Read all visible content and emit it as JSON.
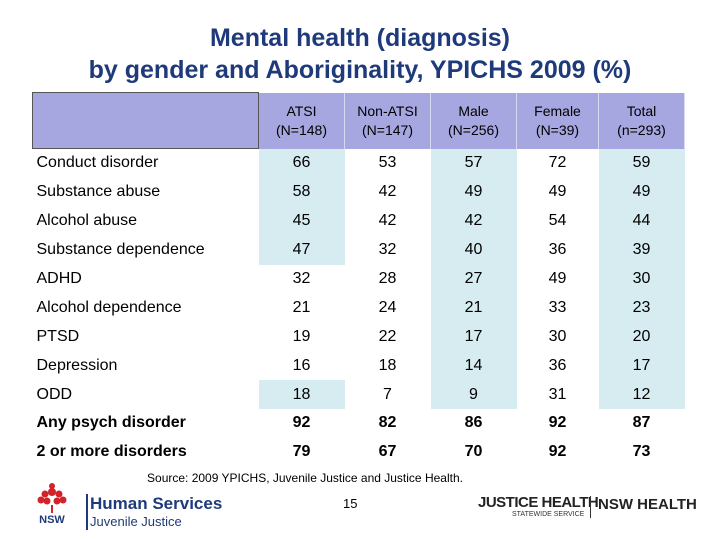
{
  "title": {
    "line1": "Mental health (diagnosis)",
    "line2": "by gender and Aboriginality, YPICHS 2009 (%)"
  },
  "table": {
    "columns": [
      {
        "line1": "ATSI",
        "line2": "(N=148)"
      },
      {
        "line1": "Non-ATSI",
        "line2": "(N=147)"
      },
      {
        "line1": "Male",
        "line2": "(N=256)"
      },
      {
        "line1": "Female",
        "line2": "(N=39)"
      },
      {
        "line1": "Total",
        "line2": "(n=293)"
      }
    ],
    "rows": [
      {
        "label": "Conduct disorder",
        "values": [
          "66",
          "53",
          "57",
          "72",
          "59"
        ]
      },
      {
        "label": "Substance abuse",
        "values": [
          "58",
          "42",
          "49",
          "49",
          "49"
        ]
      },
      {
        "label": "Alcohol abuse",
        "values": [
          "45",
          "42",
          "42",
          "54",
          "44"
        ]
      },
      {
        "label": "Substance dependence",
        "values": [
          "47",
          "32",
          "40",
          "36",
          "39"
        ]
      },
      {
        "label": "ADHD",
        "values": [
          "32",
          "28",
          "27",
          "49",
          "30"
        ]
      },
      {
        "label": "Alcohol dependence",
        "values": [
          "21",
          "24",
          "21",
          "33",
          "23"
        ]
      },
      {
        "label": "PTSD",
        "values": [
          "19",
          "22",
          "17",
          "30",
          "20"
        ]
      },
      {
        "label": "Depression",
        "values": [
          "16",
          "18",
          "14",
          "36",
          "17"
        ]
      },
      {
        "label": "ODD",
        "values": [
          "18",
          "7",
          "9",
          "31",
          "12"
        ]
      },
      {
        "label": "Any psych disorder",
        "values": [
          "92",
          "82",
          "86",
          "92",
          "87"
        ]
      },
      {
        "label": "2 or more disorders",
        "values": [
          "79",
          "67",
          "70",
          "92",
          "73"
        ]
      }
    ],
    "header_color": "#a6a6e0",
    "highlight_color": "#d6ecf1"
  },
  "footer": {
    "source": "Source: 2009 YPICHS, Juvenile Justice and Justice Health.",
    "page_number": "15",
    "logo_left": {
      "emblem_text": "NSW",
      "line1": "Human Services",
      "line2": "Juvenile Justice"
    },
    "logo_right": {
      "line1": "JUSTICE HEALTH",
      "line2": "STATEWIDE SERVICE",
      "line3": "NSW HEALTH"
    }
  }
}
